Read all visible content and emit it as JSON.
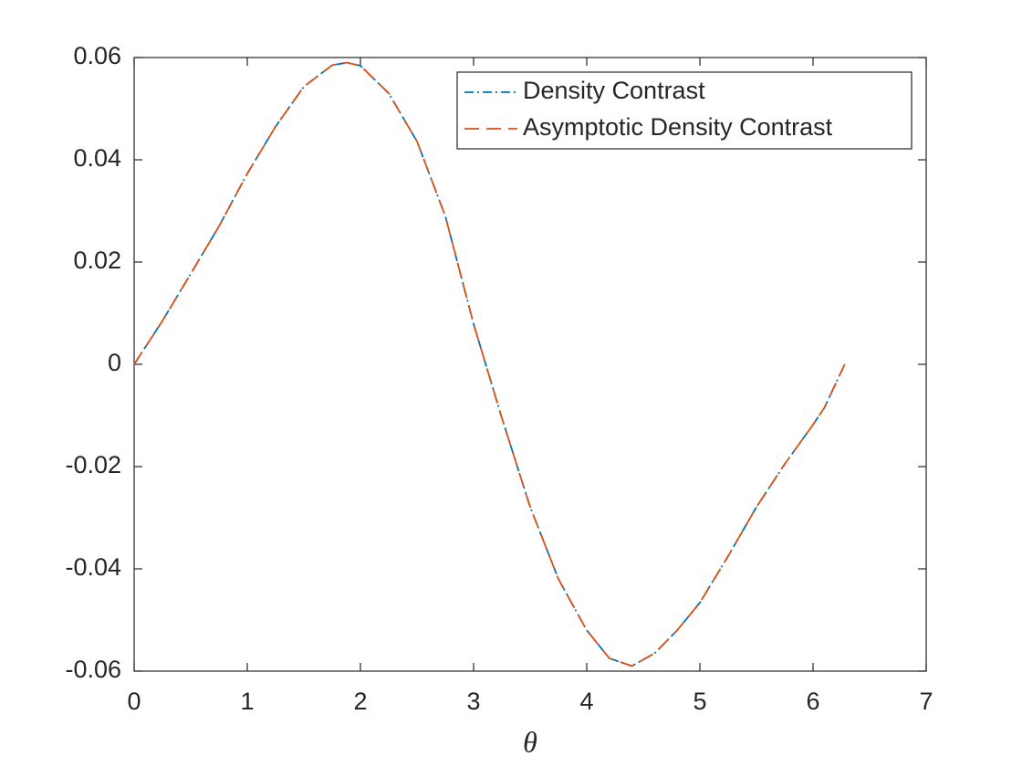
{
  "chart_data": {
    "type": "line",
    "x_label": "θ",
    "x": [
      0,
      0.25,
      0.5,
      0.75,
      1,
      1.25,
      1.5,
      1.75,
      1.88,
      2,
      2.25,
      2.5,
      2.75,
      3,
      3.25,
      3.5,
      3.75,
      4,
      4.2,
      4.4,
      4.6,
      4.8,
      5,
      5.25,
      5.5,
      5.75,
      6,
      6.1,
      6.28
    ],
    "series": [
      {
        "name": "Density Contrast",
        "color": "#0072bd",
        "dash": "dashdot",
        "values": [
          0,
          0.0085,
          0.0177,
          0.027,
          0.0373,
          0.0465,
          0.0543,
          0.0585,
          0.059,
          0.0584,
          0.053,
          0.0436,
          0.029,
          0.0079,
          -0.0105,
          -0.0279,
          -0.042,
          -0.052,
          -0.0575,
          -0.059,
          -0.0565,
          -0.052,
          -0.0466,
          -0.0375,
          -0.0279,
          -0.0195,
          -0.0118,
          -0.0085,
          0
        ]
      },
      {
        "name": "Asymptotic Density Contrast",
        "color": "#d95319",
        "dash": "dashed",
        "values": [
          0,
          0.0085,
          0.0177,
          0.027,
          0.0373,
          0.0465,
          0.0543,
          0.0585,
          0.059,
          0.0584,
          0.053,
          0.0436,
          0.029,
          0.0079,
          -0.0105,
          -0.0279,
          -0.042,
          -0.052,
          -0.0575,
          -0.059,
          -0.0565,
          -0.052,
          -0.0466,
          -0.0375,
          -0.0279,
          -0.0195,
          -0.0118,
          -0.0085,
          0
        ]
      }
    ],
    "xlim": [
      0,
      7
    ],
    "xticks": [
      0,
      1,
      2,
      3,
      4,
      5,
      6,
      7
    ],
    "ylim": [
      -0.06,
      0.06
    ],
    "yticks": [
      -0.06,
      -0.04,
      -0.02,
      0,
      0.02,
      0.04,
      0.06
    ],
    "legend": "top-right"
  }
}
